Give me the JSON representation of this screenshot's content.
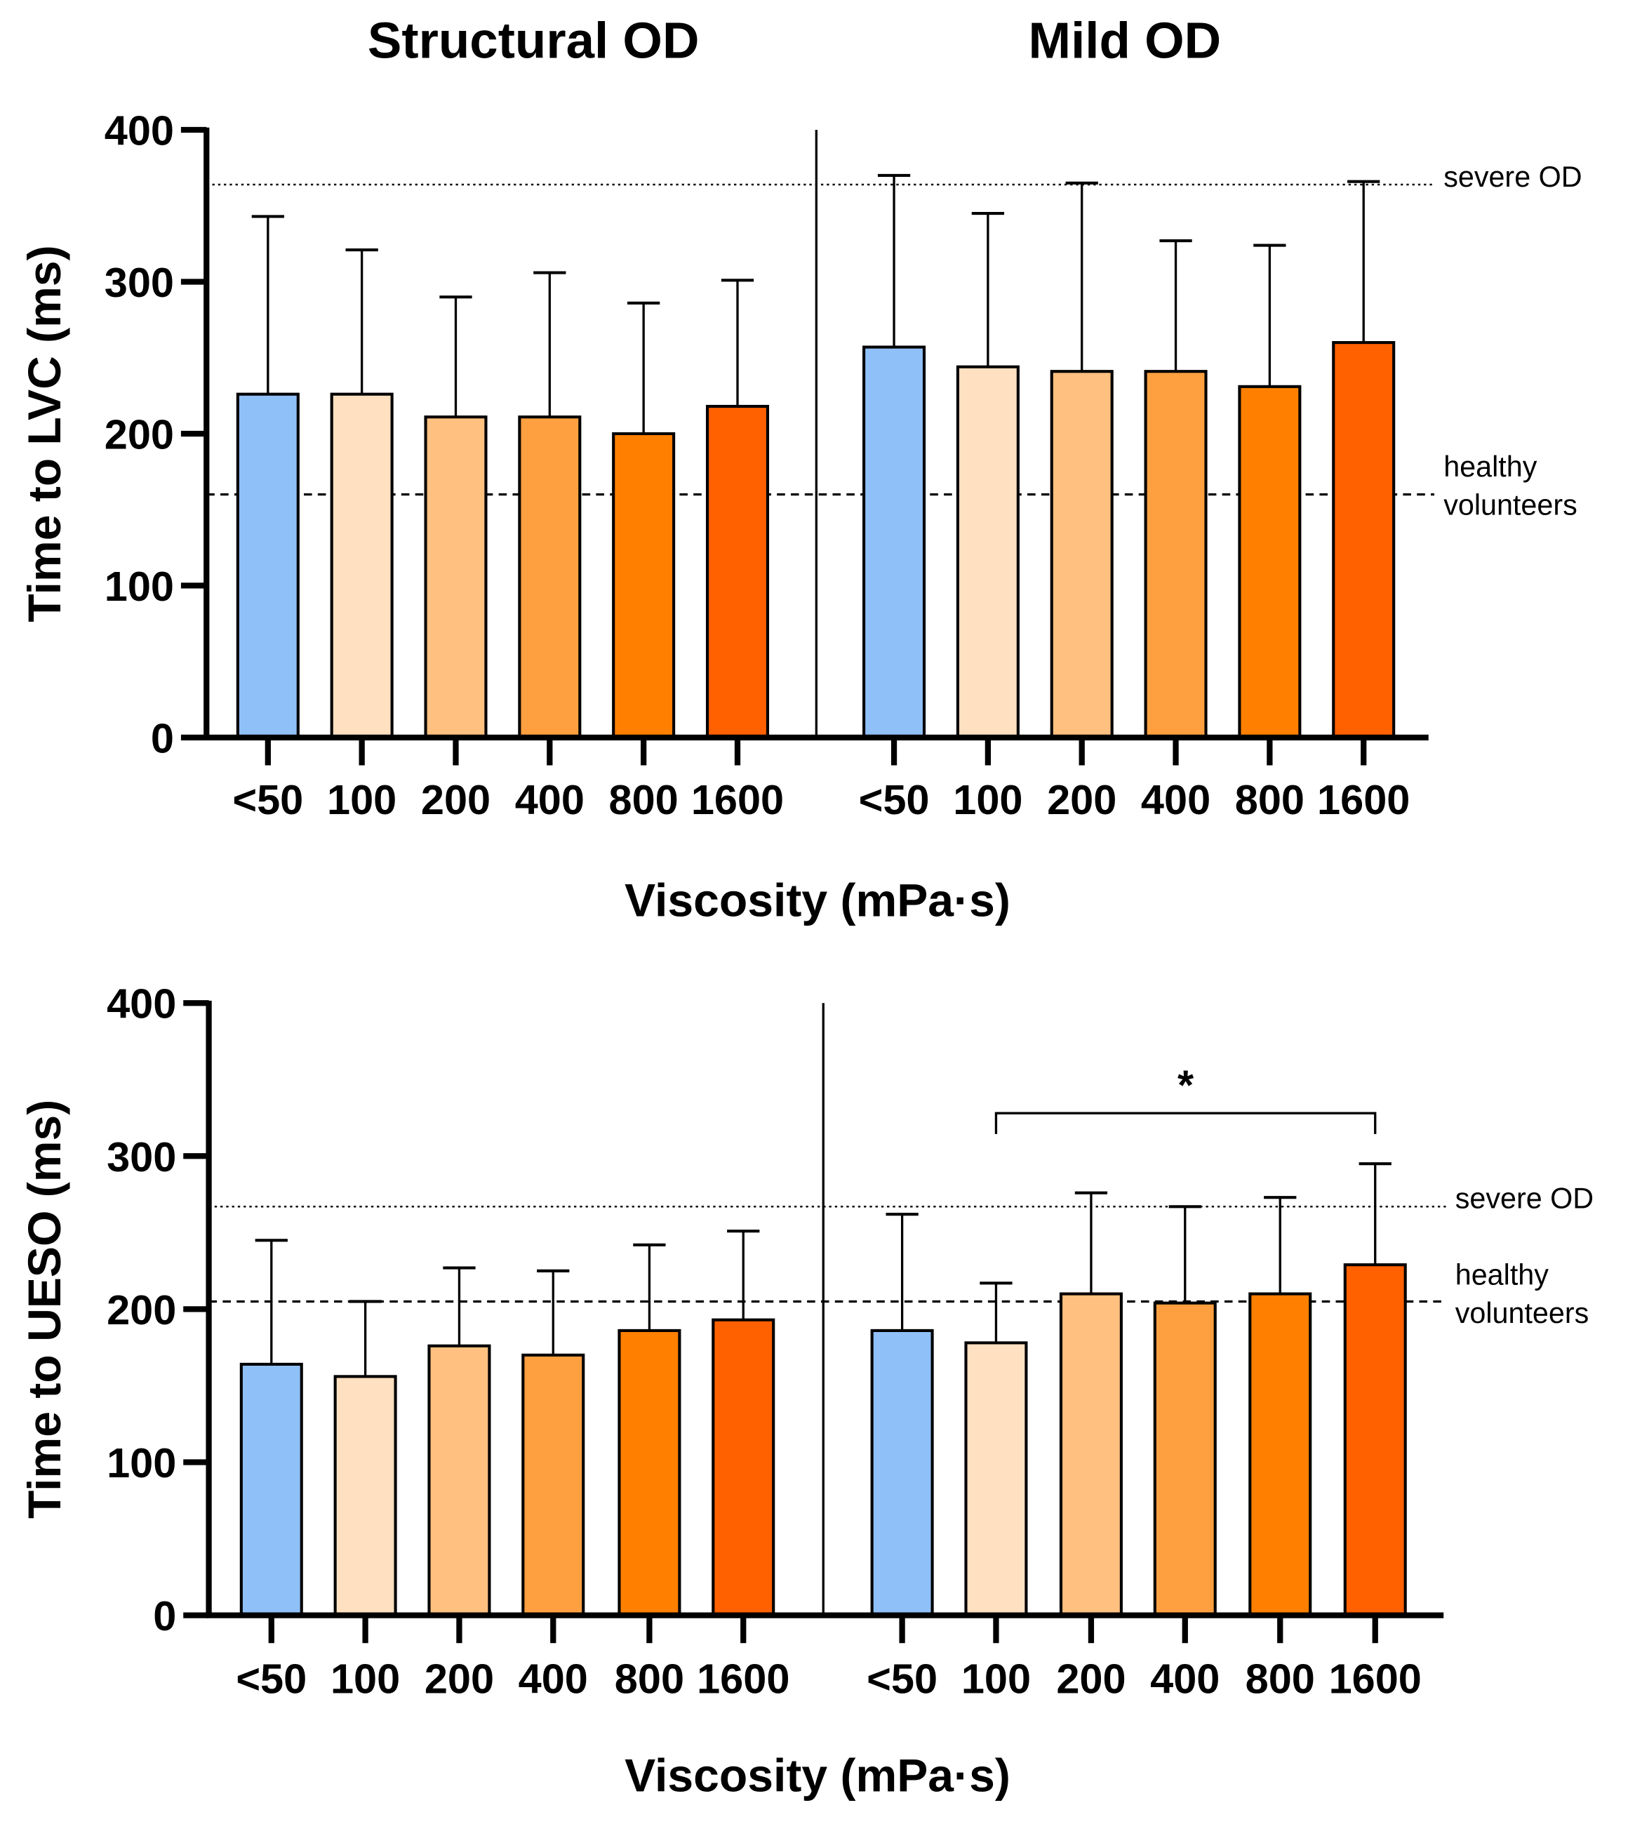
{
  "chart_data": [
    {
      "type": "bar",
      "groups": [
        "Structural OD",
        "Mild OD"
      ],
      "categories": [
        "<50",
        "100",
        "200",
        "400",
        "800",
        "1600"
      ],
      "colors": [
        "#90C0F8",
        "#FFE0C0",
        "#FFC080",
        "#FFA040",
        "#FF8000",
        "#FF6000"
      ],
      "series": [
        {
          "name": "Structural OD",
          "values": [
            226,
            226,
            211,
            211,
            200,
            218
          ],
          "error_upper": [
            343,
            321,
            290,
            306,
            286,
            301
          ]
        },
        {
          "name": "Mild OD",
          "values": [
            257,
            244,
            241,
            241,
            231,
            260
          ],
          "error_upper": [
            370,
            345,
            365,
            327,
            324,
            366
          ]
        }
      ],
      "ylabel": "Time to LVC (ms)",
      "xlabel": "Viscosity (mPa·s)",
      "ylim": [
        0,
        400
      ],
      "yticks": [
        "0",
        "100",
        "200",
        "300",
        "400"
      ],
      "reference_lines": [
        {
          "label": "severe OD",
          "value": 364,
          "style": "dotted"
        },
        {
          "label_lines": [
            "healthy",
            "volunteers"
          ],
          "value": 160,
          "style": "dashed"
        }
      ]
    },
    {
      "type": "bar",
      "groups": [
        "Structural OD",
        "Mild OD"
      ],
      "categories": [
        "<50",
        "100",
        "200",
        "400",
        "800",
        "1600"
      ],
      "colors": [
        "#90C0F8",
        "#FFE0C0",
        "#FFC080",
        "#FFA040",
        "#FF8000",
        "#FF6000"
      ],
      "series": [
        {
          "name": "Structural OD",
          "values": [
            164,
            156,
            176,
            170,
            186,
            193
          ],
          "error_upper": [
            245,
            205,
            227,
            225,
            242,
            251
          ]
        },
        {
          "name": "Mild OD",
          "values": [
            186,
            178,
            210,
            204,
            210,
            229
          ],
          "error_upper": [
            262,
            217,
            276,
            267,
            273,
            295
          ]
        }
      ],
      "ylabel": "Time to UESO (ms)",
      "xlabel": "Viscosity (mPa·s)",
      "ylim": [
        0,
        400
      ],
      "yticks": [
        "0",
        "100",
        "200",
        "300",
        "400"
      ],
      "reference_lines": [
        {
          "label": "severe OD",
          "value": 267,
          "style": "dotted"
        },
        {
          "label_lines": [
            "healthy",
            "volunteers"
          ],
          "value": 205,
          "style": "dashed"
        }
      ],
      "significance": {
        "group": "Mild OD",
        "from": "100",
        "to": "1600",
        "label": "*"
      }
    }
  ]
}
